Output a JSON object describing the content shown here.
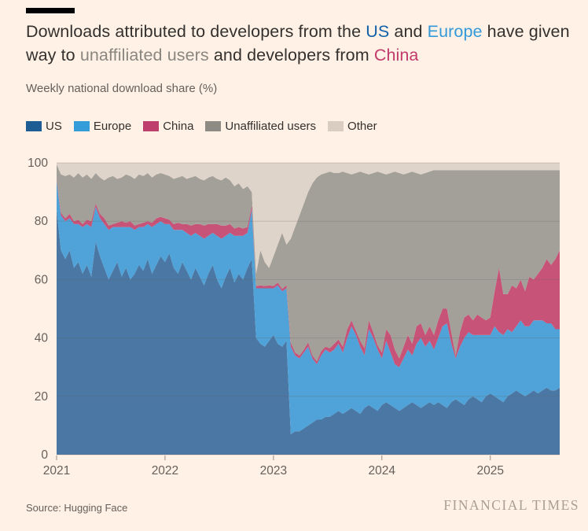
{
  "page": {
    "background": "#FFF1E5"
  },
  "header": {
    "title_lines": [
      [
        {
          "text": "Downloads attributed to developers from the ",
          "color": "#33302E"
        },
        {
          "text": "US",
          "color": "#1160A8"
        },
        {
          "text": " and ",
          "color": "#33302E"
        },
        {
          "text": "Europe",
          "color": "#3399D9"
        },
        {
          "text": " have given",
          "color": "#33302E"
        }
      ],
      [
        {
          "text": "way to ",
          "color": "#33302E"
        },
        {
          "text": "unaffiliated users",
          "color": "#8A8680"
        },
        {
          "text": " and developers from ",
          "color": "#33302E"
        },
        {
          "text": "China",
          "color": "#C03A6B"
        }
      ]
    ],
    "subtitle": "Weekly national download share (%)"
  },
  "legend": {
    "items": [
      {
        "label": "US",
        "color": "#1E5C94"
      },
      {
        "label": "Europe",
        "color": "#339CD9"
      },
      {
        "label": "China",
        "color": "#BE3F6C"
      },
      {
        "label": "Unaffiliated users",
        "color": "#8E8B85"
      },
      {
        "label": "Other",
        "color": "#D9CCC1"
      }
    ]
  },
  "chart_data": {
    "type": "area",
    "stacked": true,
    "title": "Weekly national download share (%)",
    "x_start": 2021.0,
    "x_step": 0.04,
    "x_ticks": [
      2021,
      2022,
      2023,
      2024,
      2025
    ],
    "ylim": [
      0,
      100
    ],
    "y_ticks": [
      0,
      20,
      40,
      60,
      80,
      100
    ],
    "grid": true,
    "legend_position": "top",
    "axis_color": "#66605C",
    "series": [
      {
        "name": "US",
        "fill": "#4B77A5",
        "values": [
          84,
          70,
          67,
          70,
          64,
          66,
          62,
          65,
          61,
          73,
          68,
          64,
          60,
          63,
          66,
          61,
          64,
          60,
          62,
          65,
          63,
          67,
          62,
          65,
          68,
          66,
          69,
          64,
          62,
          66,
          63,
          60,
          64,
          61,
          58,
          62,
          65,
          60,
          57,
          61,
          64,
          59,
          62,
          60,
          64,
          67,
          40,
          38,
          37,
          39,
          41,
          38,
          37,
          39,
          7,
          8,
          8,
          9,
          10,
          11,
          12,
          12,
          13,
          13,
          14,
          15,
          14,
          15,
          16,
          15,
          14,
          16,
          17,
          16,
          15,
          17,
          18,
          17,
          16,
          15,
          16,
          17,
          18,
          17,
          16,
          17,
          18,
          17,
          18,
          17,
          16,
          18,
          19,
          18,
          17,
          19,
          20,
          19,
          18,
          20,
          21,
          20,
          19,
          18,
          20,
          21,
          22,
          21,
          20,
          21,
          22,
          21,
          22,
          23,
          22,
          22,
          23
        ]
      },
      {
        "name": "Europe",
        "fill": "#4FA3D8",
        "values": [
          10,
          12,
          13,
          11,
          15,
          13,
          16,
          14,
          17,
          12,
          13,
          15,
          17,
          15,
          12,
          17,
          14,
          18,
          15,
          13,
          15,
          12,
          16,
          14,
          12,
          13,
          10,
          13,
          15,
          11,
          13,
          15,
          12,
          14,
          16,
          13,
          11,
          15,
          17,
          14,
          12,
          16,
          13,
          15,
          12,
          17,
          17,
          19,
          20,
          18,
          16,
          20,
          19,
          18,
          30,
          26,
          25,
          26,
          27,
          22,
          19,
          22,
          23,
          22,
          22,
          23,
          21,
          25,
          28,
          26,
          23,
          18,
          26,
          24,
          21,
          16,
          21,
          18,
          15,
          15,
          17,
          19,
          16,
          21,
          24,
          20,
          21,
          19,
          22,
          27,
          29,
          20,
          14,
          19,
          23,
          23,
          21,
          22,
          23,
          21,
          20,
          24,
          23,
          23,
          23,
          21,
          22,
          25,
          24,
          23,
          24,
          25,
          24,
          22,
          23,
          21,
          20
        ]
      },
      {
        "name": "China",
        "fill": "#C75379",
        "values": [
          0.5,
          1,
          1,
          1.5,
          1,
          1.5,
          1,
          1.5,
          2,
          1,
          1.5,
          2,
          1.5,
          1,
          1.5,
          2,
          1.5,
          2,
          1.5,
          1,
          1.5,
          1,
          1.5,
          2,
          1.5,
          2,
          1.5,
          2,
          2.5,
          2,
          3,
          3.5,
          3,
          4,
          4.5,
          4,
          3,
          4,
          4.5,
          3.5,
          3,
          2.5,
          3,
          2.5,
          2,
          1.5,
          0.8,
          1,
          0.8,
          1,
          0.8,
          1,
          0.8,
          1,
          1.5,
          1,
          1,
          1,
          1.5,
          1,
          1,
          1.5,
          1,
          1.5,
          2,
          1.5,
          2,
          3,
          2,
          1.5,
          2,
          2.5,
          3,
          2,
          1.5,
          2,
          4,
          6,
          5,
          3,
          4,
          5,
          4,
          6,
          5,
          4,
          5,
          5,
          6,
          6,
          5,
          4,
          1,
          5,
          7,
          6,
          5,
          7,
          6,
          5,
          6,
          12,
          22,
          14,
          12,
          16,
          13,
          14,
          12,
          17,
          14,
          16,
          18,
          22,
          20,
          24,
          27
        ]
      },
      {
        "name": "Unaffiliated users",
        "fill": "#A3A09A",
        "values": [
          5,
          13,
          14.5,
          13.5,
          15,
          16,
          16,
          15.5,
          14.5,
          10.5,
          12.5,
          13,
          16.5,
          16.5,
          15,
          15,
          16.5,
          15.5,
          16,
          17,
          16,
          16.5,
          15.5,
          15,
          15,
          15,
          15,
          15.5,
          15.5,
          16.5,
          15.5,
          16.5,
          16.5,
          15.5,
          15.5,
          16,
          16.5,
          15.5,
          15.5,
          16.5,
          15,
          14.5,
          15,
          13.5,
          14,
          4.5,
          4.2,
          12,
          8.2,
          6,
          10.2,
          13,
          19.2,
          14,
          35.5,
          43,
          48,
          50,
          51.5,
          59,
          63,
          60.5,
          59.5,
          60.5,
          58.5,
          57,
          60,
          53.5,
          50,
          54,
          58,
          60,
          50,
          54.5,
          59.5,
          61.5,
          53,
          55.5,
          61,
          63.5,
          59,
          55.5,
          59,
          52.5,
          51,
          55.5,
          53,
          56.5,
          51.5,
          47.5,
          47.5,
          55.5,
          63.5,
          55.5,
          50.5,
          49.5,
          51.5,
          49.5,
          50.5,
          51.5,
          50.5,
          41.5,
          33.5,
          42.5,
          42.5,
          39.5,
          40.5,
          37.5,
          41.5,
          36.5,
          37.5,
          35.5,
          33.5,
          30.5,
          32.5,
          30.5,
          27.5
        ]
      },
      {
        "name": "Other",
        "fill": "#DFD4CA",
        "values": [
          0.5,
          4,
          4.5,
          4,
          5,
          3.5,
          5,
          4,
          5.5,
          3.5,
          5,
          6,
          5,
          4.5,
          5.5,
          5,
          4,
          4.5,
          5.5,
          4,
          4.5,
          3.5,
          5,
          4,
          3.5,
          4,
          4.5,
          5.5,
          5,
          4.5,
          5.5,
          5,
          4.5,
          5.5,
          6,
          5,
          4.5,
          5.5,
          6,
          5,
          6,
          8,
          7,
          9,
          8,
          10,
          38,
          30,
          34,
          36,
          32,
          28,
          24,
          28,
          26,
          22,
          18,
          14,
          10,
          7,
          5,
          4,
          3.5,
          3,
          3.5,
          3.5,
          3,
          3.5,
          4,
          3.5,
          3,
          3.5,
          4,
          3.5,
          3,
          3.5,
          4,
          3.5,
          3,
          3.5,
          4,
          3.5,
          3,
          3.5,
          4,
          3.5,
          3,
          2.5,
          2.5,
          2.5,
          2.5,
          2.5,
          2.5,
          2.5,
          2.5,
          2.5,
          2.5,
          2.5,
          2.5,
          2.5,
          2.5,
          2.5,
          2.5,
          2.5,
          2.5,
          2.5,
          2.5,
          2.5,
          2.5,
          2.5,
          2.5,
          2.5,
          2.5,
          2.5,
          2.5,
          2.5,
          2.5
        ]
      }
    ]
  },
  "footer": {
    "source": "Source: Hugging Face",
    "brand": "FINANCIAL TIMES"
  }
}
